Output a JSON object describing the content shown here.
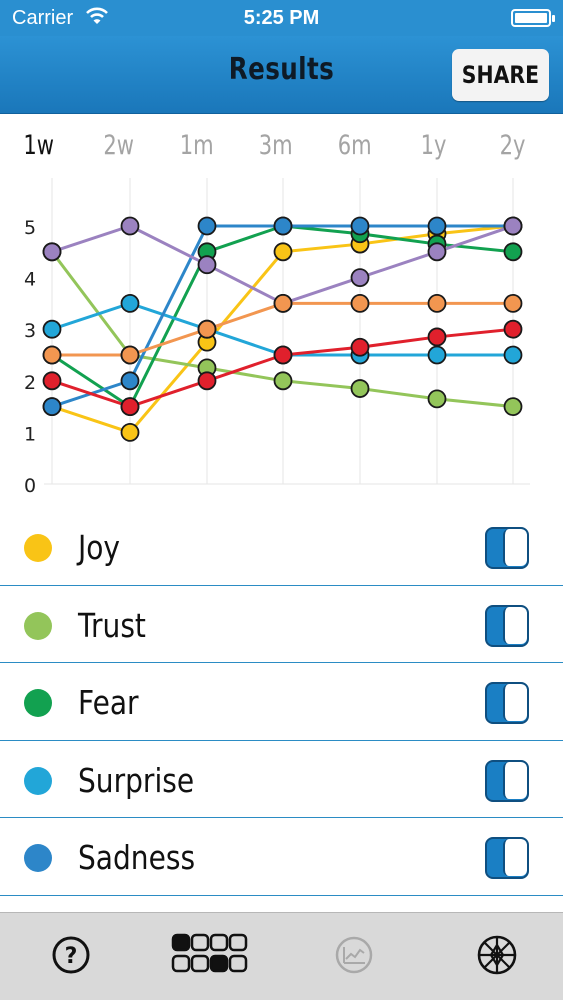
{
  "status_bar": {
    "carrier": "Carrier",
    "time": "5:25 PM"
  },
  "nav": {
    "title": "Results",
    "share_label": "SHARE"
  },
  "range_tabs": [
    {
      "label": "1w",
      "active": true
    },
    {
      "label": "2w",
      "active": false
    },
    {
      "label": "1m",
      "active": false
    },
    {
      "label": "3m",
      "active": false
    },
    {
      "label": "6m",
      "active": false
    },
    {
      "label": "1y",
      "active": false
    },
    {
      "label": "2y",
      "active": false
    }
  ],
  "chart_data": {
    "type": "line",
    "x": [
      "1w",
      "2w",
      "1m",
      "3m",
      "6m",
      "1y",
      "2y"
    ],
    "ylim": [
      0,
      5
    ],
    "yticks": [
      "0",
      "1",
      "2",
      "3",
      "4",
      "5"
    ],
    "grid": "vertical",
    "series": [
      {
        "name": "Joy",
        "color": "#f9c416",
        "values": [
          1.5,
          1.0,
          2.75,
          4.5,
          4.65,
          4.85,
          5.0
        ]
      },
      {
        "name": "Trust",
        "color": "#93c55a",
        "values": [
          4.5,
          2.5,
          2.25,
          2.0,
          1.85,
          1.65,
          1.5
        ]
      },
      {
        "name": "Fear",
        "color": "#12a150",
        "values": [
          2.5,
          1.5,
          4.5,
          5.0,
          4.85,
          4.65,
          4.5
        ]
      },
      {
        "name": "Surprise",
        "color": "#22a6d8",
        "values": [
          3.0,
          3.5,
          3.0,
          2.5,
          2.5,
          2.5,
          2.5
        ]
      },
      {
        "name": "Sadness",
        "color": "#2d86c9",
        "values": [
          1.5,
          2.0,
          5.0,
          5.0,
          5.0,
          5.0,
          5.0
        ]
      },
      {
        "name": null,
        "color": "#9b82c0",
        "values": [
          4.5,
          5.0,
          4.25,
          3.5,
          4.0,
          4.5,
          5.0
        ]
      },
      {
        "name": null,
        "color": "#f29650",
        "values": [
          2.5,
          2.5,
          3.0,
          3.5,
          3.5,
          3.5,
          3.5
        ]
      },
      {
        "name": null,
        "color": "#e0202c",
        "values": [
          2.0,
          1.5,
          2.0,
          2.5,
          2.65,
          2.85,
          3.0
        ]
      }
    ]
  },
  "legend": [
    {
      "label": "Joy",
      "color": "#f9c416",
      "enabled": true
    },
    {
      "label": "Trust",
      "color": "#93c55a",
      "enabled": true
    },
    {
      "label": "Fear",
      "color": "#12a150",
      "enabled": true
    },
    {
      "label": "Surprise",
      "color": "#22a6d8",
      "enabled": true
    },
    {
      "label": "Sadness",
      "color": "#2d86c9",
      "enabled": true
    }
  ],
  "tab_bar": [
    {
      "icon": "help-icon",
      "selected": false
    },
    {
      "icon": "grid-dots-icon",
      "selected": true
    },
    {
      "icon": "chart-icon",
      "selected": false,
      "disabled": true
    },
    {
      "icon": "wheel-icon",
      "selected": false
    }
  ]
}
